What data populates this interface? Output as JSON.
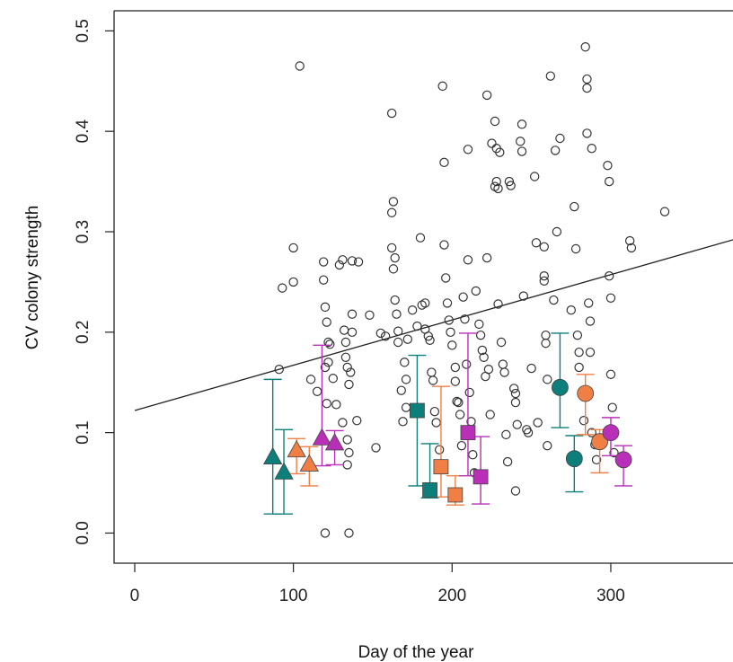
{
  "chart_data": {
    "type": "scatter",
    "xlabel": "Day of the year",
    "ylabel": "CV colony strength",
    "xlim": [
      -13,
      377
    ],
    "ylim": [
      -0.03,
      0.52
    ],
    "x_ticks": [
      0,
      100,
      200,
      300
    ],
    "x_tick_labels": [
      "0",
      "100",
      "200",
      "300"
    ],
    "y_ticks": [
      0.0,
      0.1,
      0.2,
      0.3,
      0.4,
      0.5
    ],
    "y_tick_labels": [
      "0.0",
      "0.1",
      "0.2",
      "0.3",
      "0.4",
      "0.5"
    ],
    "grid": false,
    "colors": {
      "teal": "#0d7f7b",
      "orange": "#f07f45",
      "magenta": "#b92fb8",
      "points": "#333333",
      "line": "#222222"
    },
    "trend_line": {
      "x": [
        0,
        377
      ],
      "y": [
        0.122,
        0.292
      ]
    },
    "scatter_points": [
      [
        91,
        0.163
      ],
      [
        93,
        0.244
      ],
      [
        100,
        0.284
      ],
      [
        100,
        0.25
      ],
      [
        104,
        0.465
      ],
      [
        111,
        0.153
      ],
      [
        115,
        0.141
      ],
      [
        119,
        0.27
      ],
      [
        119,
        0.252
      ],
      [
        120,
        0.225
      ],
      [
        121,
        0.21
      ],
      [
        122,
        0.19
      ],
      [
        123,
        0.188
      ],
      [
        122,
        0.17
      ],
      [
        120,
        0.165
      ],
      [
        121,
        0.129
      ],
      [
        120,
        0.0
      ],
      [
        135,
        0.0
      ],
      [
        125,
        0.154
      ],
      [
        127,
        0.128
      ],
      [
        129,
        0.267
      ],
      [
        131,
        0.272
      ],
      [
        132,
        0.202
      ],
      [
        133,
        0.19
      ],
      [
        133,
        0.175
      ],
      [
        134,
        0.165
      ],
      [
        135,
        0.148
      ],
      [
        136,
        0.16
      ],
      [
        137,
        0.218
      ],
      [
        137,
        0.2
      ],
      [
        137,
        0.271
      ],
      [
        141,
        0.27
      ],
      [
        131,
        0.11
      ],
      [
        134,
        0.093
      ],
      [
        135,
        0.08
      ],
      [
        134,
        0.068
      ],
      [
        140,
        0.112
      ],
      [
        152,
        0.085
      ],
      [
        148,
        0.217
      ],
      [
        155,
        0.199
      ],
      [
        158,
        0.196
      ],
      [
        162,
        0.418
      ],
      [
        162,
        0.319
      ],
      [
        163,
        0.33
      ],
      [
        162,
        0.284
      ],
      [
        164,
        0.274
      ],
      [
        163,
        0.263
      ],
      [
        164,
        0.232
      ],
      [
        165,
        0.218
      ],
      [
        166,
        0.201
      ],
      [
        166,
        0.19
      ],
      [
        168,
        0.142
      ],
      [
        169,
        0.111
      ],
      [
        171,
        0.125
      ],
      [
        170,
        0.17
      ],
      [
        171,
        0.153
      ],
      [
        172,
        0.193
      ],
      [
        175,
        0.222
      ],
      [
        178,
        0.206
      ],
      [
        180,
        0.294
      ],
      [
        181,
        0.227
      ],
      [
        183,
        0.229
      ],
      [
        183,
        0.203
      ],
      [
        185,
        0.196
      ],
      [
        186,
        0.192
      ],
      [
        187,
        0.16
      ],
      [
        188,
        0.152
      ],
      [
        189,
        0.121
      ],
      [
        190,
        0.11
      ],
      [
        192,
        0.083
      ],
      [
        194,
        0.445
      ],
      [
        195,
        0.369
      ],
      [
        195,
        0.287
      ],
      [
        196,
        0.254
      ],
      [
        197,
        0.229
      ],
      [
        198,
        0.212
      ],
      [
        199,
        0.2
      ],
      [
        200,
        0.187
      ],
      [
        202,
        0.165
      ],
      [
        202,
        0.151
      ],
      [
        203,
        0.131
      ],
      [
        204,
        0.13
      ],
      [
        205,
        0.118
      ],
      [
        206,
        0.087
      ],
      [
        207,
        0.235
      ],
      [
        208,
        0.213
      ],
      [
        209,
        0.168
      ],
      [
        210,
        0.382
      ],
      [
        210,
        0.272
      ],
      [
        211,
        0.14
      ],
      [
        212,
        0.111
      ],
      [
        213,
        0.078
      ],
      [
        214,
        0.06
      ],
      [
        215,
        0.241
      ],
      [
        217,
        0.208
      ],
      [
        218,
        0.197
      ],
      [
        219,
        0.182
      ],
      [
        220,
        0.175
      ],
      [
        221,
        0.156
      ],
      [
        222,
        0.436
      ],
      [
        222,
        0.274
      ],
      [
        223,
        0.163
      ],
      [
        224,
        0.118
      ],
      [
        225,
        0.388
      ],
      [
        227,
        0.41
      ],
      [
        227,
        0.345
      ],
      [
        228,
        0.383
      ],
      [
        228,
        0.35
      ],
      [
        229,
        0.343
      ],
      [
        229,
        0.228
      ],
      [
        230,
        0.379
      ],
      [
        231,
        0.19
      ],
      [
        232,
        0.168
      ],
      [
        233,
        0.16
      ],
      [
        234,
        0.098
      ],
      [
        235,
        0.071
      ],
      [
        236,
        0.35
      ],
      [
        237,
        0.346
      ],
      [
        239,
        0.144
      ],
      [
        240,
        0.139
      ],
      [
        240,
        0.13
      ],
      [
        240,
        0.042
      ],
      [
        241,
        0.108
      ],
      [
        243,
        0.39
      ],
      [
        244,
        0.38
      ],
      [
        244,
        0.407
      ],
      [
        245,
        0.236
      ],
      [
        247,
        0.103
      ],
      [
        248,
        0.1
      ],
      [
        250,
        0.164
      ],
      [
        252,
        0.355
      ],
      [
        253,
        0.289
      ],
      [
        254,
        0.11
      ],
      [
        258,
        0.285
      ],
      [
        258,
        0.256
      ],
      [
        258,
        0.251
      ],
      [
        259,
        0.197
      ],
      [
        259,
        0.189
      ],
      [
        260,
        0.153
      ],
      [
        260,
        0.087
      ],
      [
        262,
        0.455
      ],
      [
        264,
        0.232
      ],
      [
        265,
        0.381
      ],
      [
        266,
        0.3
      ],
      [
        268,
        0.393
      ],
      [
        275,
        0.222
      ],
      [
        277,
        0.325
      ],
      [
        278,
        0.283
      ],
      [
        279,
        0.197
      ],
      [
        280,
        0.18
      ],
      [
        280,
        0.165
      ],
      [
        283,
        0.142
      ],
      [
        283,
        0.112
      ],
      [
        284,
        0.484
      ],
      [
        285,
        0.452
      ],
      [
        285,
        0.443
      ],
      [
        285,
        0.398
      ],
      [
        286,
        0.229
      ],
      [
        287,
        0.211
      ],
      [
        287,
        0.18
      ],
      [
        288,
        0.383
      ],
      [
        288,
        0.1
      ],
      [
        290,
        0.088
      ],
      [
        291,
        0.073
      ],
      [
        298,
        0.366
      ],
      [
        299,
        0.35
      ],
      [
        299,
        0.256
      ],
      [
        300,
        0.234
      ],
      [
        300,
        0.158
      ],
      [
        301,
        0.125
      ],
      [
        302,
        0.08
      ],
      [
        312,
        0.291
      ],
      [
        313,
        0.284
      ],
      [
        334,
        0.32
      ]
    ],
    "series": [
      {
        "marker": "triangle",
        "color": "teal",
        "points": [
          {
            "x": 87,
            "y": 0.075,
            "lo": 0.019,
            "hi": 0.153
          },
          {
            "x": 94,
            "y": 0.06,
            "lo": 0.019,
            "hi": 0.103
          }
        ]
      },
      {
        "marker": "triangle",
        "color": "orange",
        "points": [
          {
            "x": 102,
            "y": 0.082,
            "lo": 0.059,
            "hi": 0.094
          },
          {
            "x": 110,
            "y": 0.068,
            "lo": 0.047,
            "hi": 0.086
          }
        ]
      },
      {
        "marker": "triangle",
        "color": "magenta",
        "points": [
          {
            "x": 118,
            "y": 0.094,
            "lo": 0.067,
            "hi": 0.187
          },
          {
            "x": 126,
            "y": 0.089,
            "lo": 0.068,
            "hi": 0.102
          }
        ]
      },
      {
        "marker": "square",
        "color": "teal",
        "points": [
          {
            "x": 178,
            "y": 0.122,
            "lo": 0.047,
            "hi": 0.177
          },
          {
            "x": 186,
            "y": 0.043,
            "lo": 0.035,
            "hi": 0.089
          }
        ]
      },
      {
        "marker": "square",
        "color": "orange",
        "points": [
          {
            "x": 193,
            "y": 0.066,
            "lo": 0.036,
            "hi": 0.146
          },
          {
            "x": 202,
            "y": 0.038,
            "lo": 0.028,
            "hi": 0.057
          }
        ]
      },
      {
        "marker": "square",
        "color": "magenta",
        "points": [
          {
            "x": 210,
            "y": 0.1,
            "lo": 0.057,
            "hi": 0.199
          },
          {
            "x": 218,
            "y": 0.056,
            "lo": 0.029,
            "hi": 0.096
          }
        ]
      },
      {
        "marker": "circle",
        "color": "teal",
        "points": [
          {
            "x": 268,
            "y": 0.145,
            "lo": 0.105,
            "hi": 0.199
          },
          {
            "x": 277,
            "y": 0.074,
            "lo": 0.041,
            "hi": 0.097
          }
        ]
      },
      {
        "marker": "circle",
        "color": "orange",
        "points": [
          {
            "x": 284,
            "y": 0.139,
            "lo": 0.098,
            "hi": 0.158
          },
          {
            "x": 293,
            "y": 0.091,
            "lo": 0.06,
            "hi": 0.103
          }
        ]
      },
      {
        "marker": "circle",
        "color": "magenta",
        "points": [
          {
            "x": 300,
            "y": 0.1,
            "lo": 0.077,
            "hi": 0.115
          },
          {
            "x": 308,
            "y": 0.073,
            "lo": 0.047,
            "hi": 0.087
          }
        ]
      }
    ]
  }
}
